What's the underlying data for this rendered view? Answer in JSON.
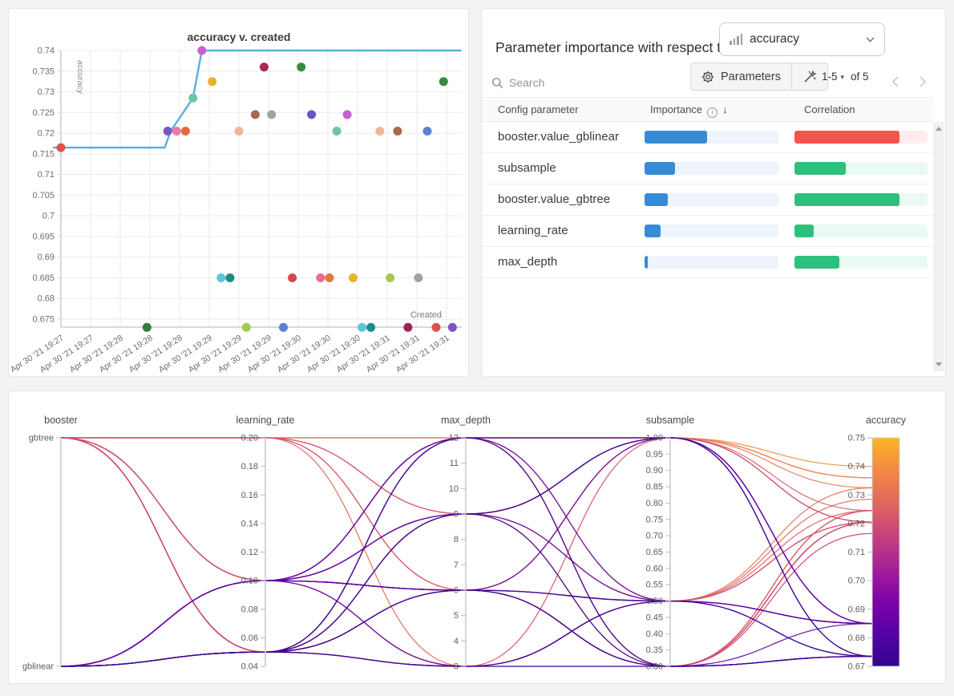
{
  "page": {
    "background": "#f2f3f4",
    "panel_border": "#e3e4e6"
  },
  "importance_panel": {
    "title": "Parameter importance with respect to",
    "metric_dropdown": {
      "value": "accuracy",
      "icon": "bar-chart-icon"
    },
    "search_placeholder": "Search",
    "parameters_button_label": "Parameters",
    "pagination": {
      "range_label": "1-5",
      "of_label": "of 5"
    },
    "columns": {
      "parameter": "Config parameter",
      "importance": "Importance",
      "correlation": "Correlation"
    },
    "colors": {
      "importance_fill": "#368bd6",
      "importance_track": "#eef4fc",
      "positive_fill": "#2dc07c",
      "positive_track": "#eafaf2",
      "negative_fill": "#f4534e",
      "negative_track": "#fdeeed"
    },
    "rows": [
      {
        "parameter": "booster.value_gblinear",
        "importance": 0.47,
        "correlation": 0.79,
        "correlation_sign": "negative"
      },
      {
        "parameter": "subsample",
        "importance": 0.23,
        "correlation": 0.385,
        "correlation_sign": "positive"
      },
      {
        "parameter": "booster.value_gbtree",
        "importance": 0.175,
        "correlation": 0.79,
        "correlation_sign": "positive"
      },
      {
        "parameter": "learning_rate",
        "importance": 0.12,
        "correlation": 0.145,
        "correlation_sign": "positive"
      },
      {
        "parameter": "max_depth",
        "importance": 0.025,
        "correlation": 0.34,
        "correlation_sign": "positive"
      }
    ]
  },
  "chart_data": [
    {
      "type": "scatter",
      "title": "accuracy v. created",
      "xlabel": "Created",
      "ylabel": "accuracy",
      "x_tick_labels": [
        "Apr 30 '21 19:27",
        "Apr 30 '21 19:27",
        "Apr 30 '21 19:28",
        "Apr 30 '21 19:28",
        "Apr 30 '21 19:28",
        "Apr 30 '21 19:29",
        "Apr 30 '21 19:29",
        "Apr 30 '21 19:29",
        "Apr 30 '21 19:30",
        "Apr 30 '21 19:30",
        "Apr 30 '21 19:30",
        "Apr 30 '21 19:31",
        "Apr 30 '21 19:31",
        "Apr 30 '21 19:31"
      ],
      "y_tick_labels": [
        "0.74",
        "0.735",
        "0.73",
        "0.725",
        "0.72",
        "0.715",
        "0.71",
        "0.705",
        "0.7",
        "0.695",
        "0.69",
        "0.685",
        "0.68",
        "0.675"
      ],
      "y_tick_start": 0.74,
      "y_tick_step": 0.005,
      "grid": true,
      "best_line": {
        "color": "#5aade0",
        "points": [
          [
            -0.27,
            0.7165
          ],
          [
            3.5,
            0.7165
          ],
          [
            3.7,
            0.7205
          ],
          [
            4.45,
            0.7285
          ],
          [
            4.75,
            0.74
          ],
          [
            13.5,
            0.74
          ]
        ]
      },
      "points": [
        {
          "x": 0.0,
          "y": 0.7165,
          "color": "#df514c"
        },
        {
          "x": 3.6,
          "y": 0.7205,
          "color": "#7d54c1"
        },
        {
          "x": 3.9,
          "y": 0.7205,
          "color": "#ea7ba0"
        },
        {
          "x": 4.2,
          "y": 0.7205,
          "color": "#e8683a"
        },
        {
          "x": 4.45,
          "y": 0.7285,
          "color": "#6fc5a2"
        },
        {
          "x": 4.75,
          "y": 0.74,
          "color": "#c95fce"
        },
        {
          "x": 5.1,
          "y": 0.7325,
          "color": "#eab22c"
        },
        {
          "x": 6.0,
          "y": 0.7205,
          "color": "#f2b496"
        },
        {
          "x": 6.55,
          "y": 0.7245,
          "color": "#a9674f"
        },
        {
          "x": 6.85,
          "y": 0.736,
          "color": "#a62a5c"
        },
        {
          "x": 7.1,
          "y": 0.7245,
          "color": "#9fa3a7"
        },
        {
          "x": 8.1,
          "y": 0.736,
          "color": "#398c3f"
        },
        {
          "x": 8.45,
          "y": 0.7245,
          "color": "#6d52c4"
        },
        {
          "x": 9.3,
          "y": 0.7205,
          "color": "#6fc5a2"
        },
        {
          "x": 9.65,
          "y": 0.7245,
          "color": "#c95fce"
        },
        {
          "x": 10.75,
          "y": 0.7205,
          "color": "#f2b496"
        },
        {
          "x": 11.35,
          "y": 0.7205,
          "color": "#a9674f"
        },
        {
          "x": 12.35,
          "y": 0.7205,
          "color": "#5c80d6"
        },
        {
          "x": 12.9,
          "y": 0.7325,
          "color": "#398c3f"
        },
        {
          "x": 5.4,
          "y": 0.685,
          "color": "#5bc6dc"
        },
        {
          "x": 5.7,
          "y": 0.685,
          "color": "#1d8c87"
        },
        {
          "x": 7.8,
          "y": 0.685,
          "color": "#d6454a"
        },
        {
          "x": 8.75,
          "y": 0.685,
          "color": "#ea6b96"
        },
        {
          "x": 9.05,
          "y": 0.685,
          "color": "#e8763b"
        },
        {
          "x": 9.85,
          "y": 0.685,
          "color": "#eab22c"
        },
        {
          "x": 11.1,
          "y": 0.685,
          "color": "#a3c94e"
        },
        {
          "x": 12.05,
          "y": 0.685,
          "color": "#9fa3a7"
        },
        {
          "x": 2.9,
          "y": 0.673,
          "color": "#2f7d3c"
        },
        {
          "x": 6.25,
          "y": 0.673,
          "color": "#a3c94e"
        },
        {
          "x": 7.5,
          "y": 0.673,
          "color": "#5c80d6"
        },
        {
          "x": 10.15,
          "y": 0.673,
          "color": "#5bc6dc"
        },
        {
          "x": 10.45,
          "y": 0.673,
          "color": "#1d8c87"
        },
        {
          "x": 11.7,
          "y": 0.673,
          "color": "#9c2456"
        },
        {
          "x": 12.65,
          "y": 0.673,
          "color": "#df514c"
        },
        {
          "x": 13.2,
          "y": 0.673,
          "color": "#7d54c1"
        }
      ]
    },
    {
      "type": "parallel-coordinates",
      "color_metric": "accuracy",
      "colormap": [
        [
          0,
          "#30068d"
        ],
        [
          0.14,
          "#5502a4"
        ],
        [
          0.29,
          "#7e03a8"
        ],
        [
          0.43,
          "#a62098"
        ],
        [
          0.57,
          "#c6417d"
        ],
        [
          0.71,
          "#e0655f"
        ],
        [
          0.86,
          "#f28a44"
        ],
        [
          1,
          "#fcb525"
        ]
      ],
      "axes": [
        {
          "name": "booster",
          "type": "categorical",
          "categories": [
            "gbtree",
            "gblinear"
          ]
        },
        {
          "name": "learning_rate",
          "type": "numeric",
          "domain": [
            0.04,
            0.2
          ],
          "tick_labels": [
            "0.20",
            "0.18",
            "0.16",
            "0.14",
            "0.12",
            "0.10",
            "0.08",
            "0.06",
            "0.04"
          ]
        },
        {
          "name": "max_depth",
          "type": "numeric",
          "domain": [
            3,
            12
          ],
          "tick_labels": [
            "12",
            "11",
            "10",
            "9",
            "8",
            "7",
            "6",
            "5",
            "4",
            "3"
          ]
        },
        {
          "name": "subsample",
          "type": "numeric",
          "domain": [
            0.3,
            1.0
          ],
          "tick_labels": [
            "1.00",
            "0.95",
            "0.90",
            "0.85",
            "0.80",
            "0.75",
            "0.70",
            "0.65",
            "0.60",
            "0.55",
            "0.50",
            "0.45",
            "0.40",
            "0.35",
            "0.30"
          ]
        },
        {
          "name": "accuracy",
          "type": "numeric",
          "domain": [
            0.67,
            0.75
          ],
          "colorbar": true,
          "tick_labels": [
            "0.75",
            "0.74",
            "0.73",
            "0.72",
            "0.71",
            "0.70",
            "0.69",
            "0.68",
            "0.67"
          ]
        }
      ],
      "runs": [
        {
          "booster": "gbtree",
          "learning_rate": 0.2,
          "max_depth": 12,
          "subsample": 1.0,
          "accuracy": 0.74
        },
        {
          "booster": "gbtree",
          "learning_rate": 0.2,
          "max_depth": 9,
          "subsample": 1.0,
          "accuracy": 0.736
        },
        {
          "booster": "gbtree",
          "learning_rate": 0.1,
          "max_depth": 12,
          "subsample": 1.0,
          "accuracy": 0.736
        },
        {
          "booster": "gbtree",
          "learning_rate": 0.2,
          "max_depth": 6,
          "subsample": 1.0,
          "accuracy": 0.7325
        },
        {
          "booster": "gbtree",
          "learning_rate": 0.05,
          "max_depth": 12,
          "subsample": 0.5,
          "accuracy": 0.7325
        },
        {
          "booster": "gbtree",
          "learning_rate": 0.2,
          "max_depth": 3,
          "subsample": 0.5,
          "accuracy": 0.7285
        },
        {
          "booster": "gbtree",
          "learning_rate": 0.1,
          "max_depth": 6,
          "subsample": 0.3,
          "accuracy": 0.7245
        },
        {
          "booster": "gbtree",
          "learning_rate": 0.2,
          "max_depth": 12,
          "subsample": 0.3,
          "accuracy": 0.7245
        },
        {
          "booster": "gbtree",
          "learning_rate": 0.1,
          "max_depth": 9,
          "subsample": 0.5,
          "accuracy": 0.7245
        },
        {
          "booster": "gbtree",
          "learning_rate": 0.05,
          "max_depth": 6,
          "subsample": 1.0,
          "accuracy": 0.7245
        },
        {
          "booster": "gbtree",
          "learning_rate": 0.2,
          "max_depth": 9,
          "subsample": 0.3,
          "accuracy": 0.7205
        },
        {
          "booster": "gbtree",
          "learning_rate": 0.1,
          "max_depth": 3,
          "subsample": 1.0,
          "accuracy": 0.7205
        },
        {
          "booster": "gbtree",
          "learning_rate": 0.2,
          "max_depth": 6,
          "subsample": 0.3,
          "accuracy": 0.7205
        },
        {
          "booster": "gbtree",
          "learning_rate": 0.1,
          "max_depth": 12,
          "subsample": 0.3,
          "accuracy": 0.7205
        },
        {
          "booster": "gbtree",
          "learning_rate": 0.05,
          "max_depth": 9,
          "subsample": 1.0,
          "accuracy": 0.7205
        },
        {
          "booster": "gbtree",
          "learning_rate": 0.05,
          "max_depth": 3,
          "subsample": 0.5,
          "accuracy": 0.7205
        },
        {
          "booster": "gbtree",
          "learning_rate": 0.1,
          "max_depth": 6,
          "subsample": 0.5,
          "accuracy": 0.7205
        },
        {
          "booster": "gbtree",
          "learning_rate": 0.05,
          "max_depth": 6,
          "subsample": 0.3,
          "accuracy": 0.7205
        },
        {
          "booster": "gbtree",
          "learning_rate": 0.05,
          "max_depth": 3,
          "subsample": 0.3,
          "accuracy": 0.7165
        },
        {
          "booster": "gblinear",
          "learning_rate": 0.1,
          "max_depth": 12,
          "subsample": 1.0,
          "accuracy": 0.685
        },
        {
          "booster": "gblinear",
          "learning_rate": 0.1,
          "max_depth": 9,
          "subsample": 0.5,
          "accuracy": 0.685
        },
        {
          "booster": "gblinear",
          "learning_rate": 0.1,
          "max_depth": 6,
          "subsample": 0.3,
          "accuracy": 0.685
        },
        {
          "booster": "gblinear",
          "learning_rate": 0.1,
          "max_depth": 3,
          "subsample": 0.5,
          "accuracy": 0.685
        },
        {
          "booster": "gblinear",
          "learning_rate": 0.1,
          "max_depth": 6,
          "subsample": 1.0,
          "accuracy": 0.685
        },
        {
          "booster": "gblinear",
          "learning_rate": 0.1,
          "max_depth": 12,
          "subsample": 0.5,
          "accuracy": 0.685
        },
        {
          "booster": "gblinear",
          "learning_rate": 0.1,
          "max_depth": 9,
          "subsample": 1.0,
          "accuracy": 0.685
        },
        {
          "booster": "gblinear",
          "learning_rate": 0.1,
          "max_depth": 6,
          "subsample": 0.5,
          "accuracy": 0.685
        },
        {
          "booster": "gblinear",
          "learning_rate": 0.05,
          "max_depth": 3,
          "subsample": 0.3,
          "accuracy": 0.6735
        },
        {
          "booster": "gblinear",
          "learning_rate": 0.05,
          "max_depth": 6,
          "subsample": 0.5,
          "accuracy": 0.6735
        },
        {
          "booster": "gblinear",
          "learning_rate": 0.05,
          "max_depth": 9,
          "subsample": 0.3,
          "accuracy": 0.6735
        },
        {
          "booster": "gblinear",
          "learning_rate": 0.05,
          "max_depth": 12,
          "subsample": 1.0,
          "accuracy": 0.6735
        },
        {
          "booster": "gblinear",
          "learning_rate": 0.05,
          "max_depth": 6,
          "subsample": 0.3,
          "accuracy": 0.6735
        },
        {
          "booster": "gblinear",
          "learning_rate": 0.05,
          "max_depth": 3,
          "subsample": 0.5,
          "accuracy": 0.6735
        },
        {
          "booster": "gblinear",
          "learning_rate": 0.05,
          "max_depth": 9,
          "subsample": 1.0,
          "accuracy": 0.6735
        },
        {
          "booster": "gblinear",
          "learning_rate": 0.05,
          "max_depth": 12,
          "subsample": 0.3,
          "accuracy": 0.6735
        }
      ]
    }
  ]
}
